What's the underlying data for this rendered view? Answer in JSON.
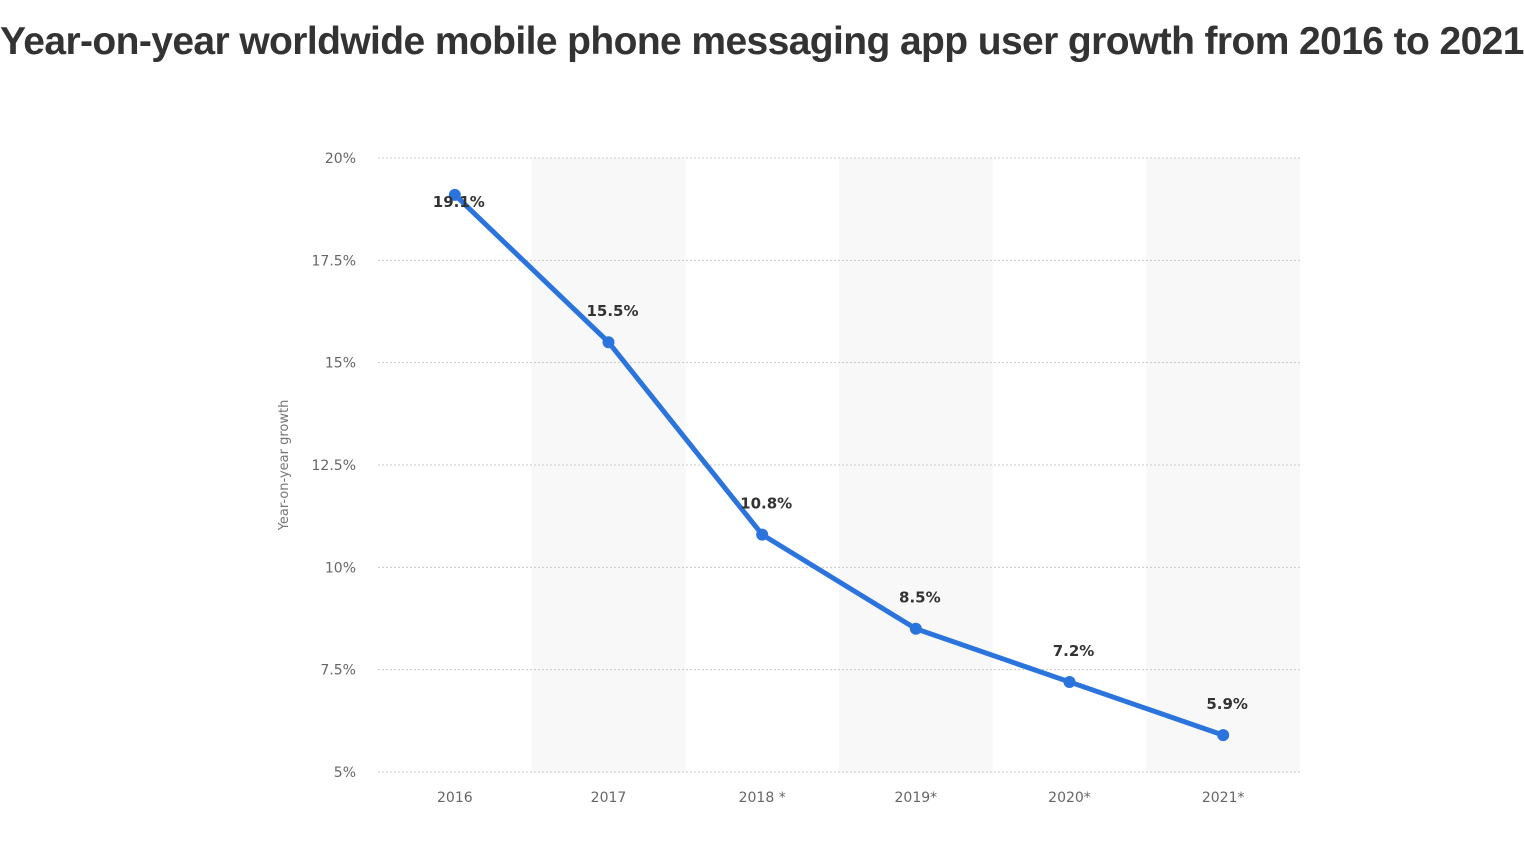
{
  "chart_data": {
    "type": "line",
    "title": "Year-on-year worldwide mobile phone messaging app user growth from 2016 to 2021",
    "xlabel": "",
    "ylabel": "Year-on-year growth",
    "categories": [
      "2016",
      "2017",
      "2018 *",
      "2019*",
      "2020*",
      "2021*"
    ],
    "series": [
      {
        "values": [
          19.1,
          15.5,
          10.8,
          8.5,
          7.2,
          5.9
        ],
        "data_labels": [
          "19.1%",
          "15.5%",
          "10.8%",
          "8.5%",
          "7.2%",
          "5.9%"
        ]
      }
    ],
    "ylim": [
      5,
      20
    ],
    "yticks": [
      {
        "value": 5,
        "label": "5%"
      },
      {
        "value": 7.5,
        "label": "7.5%"
      },
      {
        "value": 10,
        "label": "10%"
      },
      {
        "value": 12.5,
        "label": "12.5%"
      },
      {
        "value": 15,
        "label": "15%"
      },
      {
        "value": 17.5,
        "label": "17.5%"
      },
      {
        "value": 20,
        "label": "20%"
      }
    ],
    "grid": true,
    "legend": "none",
    "colors": {
      "line": "#2b74de",
      "band": "#f8f8f8",
      "grid": "#c8c8c8"
    }
  }
}
